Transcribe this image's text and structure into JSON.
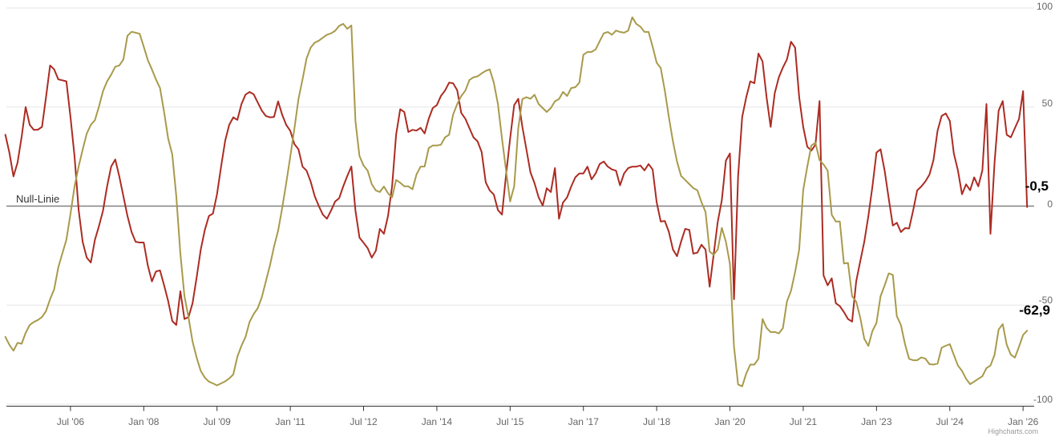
{
  "chart_data": {
    "type": "line",
    "title": "",
    "legend_position": "none",
    "grid": true,
    "x_axis": {
      "start": "2005-03",
      "end": "2026-02",
      "interval": "monthly",
      "tick_labels": [
        "Jul '06",
        "Jan '08",
        "Jul '09",
        "Jan '11",
        "Jul '12",
        "Jan '14",
        "Jul '15",
        "Jan '17",
        "Jul '18",
        "Jan '20",
        "Jul '21",
        "Jan '23",
        "Jul '24",
        "Jan '26"
      ],
      "tick_indices": [
        16,
        34,
        52,
        70,
        88,
        106,
        124,
        142,
        160,
        178,
        196,
        214,
        232,
        250
      ]
    },
    "y_axis": {
      "ticks": [
        100,
        50,
        0,
        -50,
        -100
      ],
      "tick_labels": [
        "100",
        "50",
        "0",
        "-50",
        "-100"
      ],
      "ylim": [
        -100,
        100
      ],
      "opposite": true,
      "zero_line_label": "Null-Linie"
    },
    "series": [
      {
        "id": "red",
        "color": "#AC2B22",
        "last_value_label": "-0,5",
        "values": [
          36,
          27,
          15,
          22,
          35,
          50,
          41,
          38.5,
          38.6,
          40,
          55,
          71,
          69,
          64,
          63.5,
          63,
          45,
          25,
          -2,
          -18,
          -26,
          -28.5,
          -17,
          -10,
          -2.3,
          10,
          20,
          23.5,
          15,
          5,
          -5,
          -13,
          -18,
          -18.4,
          -18.4,
          -30,
          -38,
          -33,
          -32.5,
          -40,
          -48,
          -58,
          -60,
          -43,
          -57,
          -56,
          -49,
          -36,
          -22,
          -12,
          -5,
          -3.8,
          6,
          20,
          33,
          41,
          44.8,
          43.5,
          51.5,
          56.3,
          57.6,
          56.5,
          52.3,
          48.2,
          45.5,
          44.8,
          45,
          52.9,
          46.1,
          41,
          38,
          31.3,
          28.7,
          19.9,
          17.9,
          12.4,
          5,
          0,
          -4.3,
          -6.4,
          -2.3,
          2.3,
          4,
          9.9,
          15.2,
          20,
          -2.3,
          -15.9,
          -18.5,
          -21.2,
          -26,
          -22.6,
          -11.5,
          -14,
          -5,
          10,
          36,
          48.9,
          47.5,
          37.4,
          38.5,
          38.1,
          39.5,
          36.7,
          44.1,
          49.5,
          51,
          55.6,
          58.3,
          62.3,
          62,
          58.5,
          47,
          44.1,
          39.4,
          34.7,
          32.7,
          27.3,
          12,
          7.9,
          5.8,
          -2,
          -4.3,
          16,
          34,
          51,
          54.2,
          40,
          28.7,
          17,
          11.5,
          4.4,
          0.3,
          9,
          7.1,
          19.2,
          -6.4,
          1.8,
          4.4,
          9.9,
          14.5,
          16.5,
          16.5,
          19.9,
          13.5,
          16.5,
          21.2,
          22.5,
          19.9,
          18.5,
          17.9,
          10.5,
          16.5,
          19.2,
          19.9,
          19.9,
          20.5,
          18,
          21.2,
          18.5,
          2,
          -7.8,
          -7.5,
          -13.1,
          -21.9,
          -25.3,
          -17.9,
          -11.5,
          -12,
          -24,
          -23.5,
          -19.5,
          -22,
          -40.7,
          -24.5,
          -8,
          3,
          23,
          26.6,
          -47,
          15,
          45,
          55,
          63,
          62,
          77,
          73,
          55,
          40,
          57,
          65,
          70,
          74,
          83,
          80,
          55,
          40,
          30,
          28,
          31,
          53,
          -35,
          -40,
          -36.5,
          -49,
          -50.5,
          -53.5,
          -57,
          -58.3,
          -38,
          -28,
          -18,
          -5,
          10,
          27,
          28.7,
          17.9,
          3.8,
          -9.8,
          -8.4,
          -13.1,
          -11.1,
          -11.3,
          -2.3,
          7.9,
          9.9,
          12.4,
          15.9,
          23.2,
          38,
          45.5,
          46.8,
          43,
          26.6,
          18,
          6,
          11,
          8,
          14.5,
          10,
          18,
          51.5,
          -14,
          22,
          48.2,
          53,
          36,
          34.7,
          39.4,
          44,
          58,
          -0.5
        ]
      },
      {
        "id": "olive",
        "color": "#A89A4B",
        "last_value_label": "-62,9",
        "values": [
          -66,
          -70,
          -73,
          -69,
          -69.5,
          -64,
          -60,
          -58.5,
          -57.5,
          -56,
          -53,
          -47,
          -42,
          -31,
          -24,
          -17,
          -4,
          10,
          20,
          28.5,
          36.6,
          41,
          43.4,
          50.3,
          58,
          63,
          66.4,
          70.4,
          71,
          74,
          86,
          88,
          87.5,
          87,
          80.5,
          73.7,
          69,
          64,
          59.6,
          47.5,
          34,
          26,
          5,
          -24,
          -45.5,
          -56.3,
          -68.4,
          -76.5,
          -83.2,
          -86.6,
          -88.6,
          -89.5,
          -90.5,
          -89.5,
          -88.5,
          -87,
          -85,
          -76,
          -70.5,
          -66,
          -58.5,
          -54.5,
          -51.5,
          -46,
          -38,
          -30,
          -20.5,
          -12.5,
          -1,
          11.5,
          25,
          39,
          54,
          64,
          74.5,
          80,
          82.5,
          83.5,
          85,
          86.5,
          87.2,
          88.5,
          91,
          92,
          89.5,
          91.2,
          42.8,
          25.3,
          20.5,
          17.9,
          11.1,
          7.9,
          7.1,
          9.9,
          6.5,
          4.4,
          13.2,
          11.8,
          10,
          10,
          8.5,
          15.9,
          19.9,
          20,
          29.3,
          30.6,
          30.6,
          31,
          34.7,
          36,
          46.2,
          51.5,
          55.6,
          58.3,
          63.6,
          65,
          65.5,
          67,
          68.3,
          69,
          62.3,
          51.5,
          34,
          17.9,
          2.3,
          10,
          39.4,
          54,
          55,
          54.2,
          56.2,
          51.5,
          49.5,
          47.5,
          49.5,
          52.9,
          54,
          57.6,
          55.6,
          59.6,
          60,
          62.3,
          76.4,
          77.8,
          77.8,
          79.1,
          83.2,
          87.2,
          87.9,
          86.5,
          88.6,
          87.9,
          87.5,
          88.6,
          95.3,
          92,
          90.6,
          87.9,
          87.9,
          80.5,
          72.4,
          69.7,
          58.3,
          44.8,
          32.7,
          22.5,
          15.2,
          13.2,
          11.1,
          9.1,
          8,
          2,
          -3,
          -23,
          -24.6,
          -22,
          -11,
          -18,
          -29.2,
          -71,
          -90,
          -91,
          -84.5,
          -80,
          -80,
          -77.1,
          -57,
          -61.5,
          -63.6,
          -63.5,
          -64.3,
          -61.6,
          -48.2,
          -42.8,
          -33.3,
          -22,
          8,
          19.9,
          30.6,
          32,
          23.2,
          21,
          17.9,
          -4.4,
          -7.8,
          -7.8,
          -29,
          -28.7,
          -45.5,
          -48.2,
          -56.2,
          -67,
          -70.6,
          -63,
          -59,
          -45.5,
          -40,
          -34,
          -34.7,
          -55.6,
          -60,
          -69.7,
          -77.1,
          -77.8,
          -77.8,
          -76.4,
          -77,
          -79.8,
          -80,
          -79.5,
          -71.5,
          -70.5,
          -69.7,
          -75.1,
          -80.5,
          -83.2,
          -87.2,
          -89.9,
          -88.6,
          -87.2,
          -85.9,
          -81.8,
          -80.5,
          -75.1,
          -62.3,
          -59.6,
          -70,
          -75,
          -76.5,
          -71,
          -65,
          -62.9
        ]
      }
    ]
  },
  "labels": {
    "null_line": "Null-Linie",
    "red_value": "-0,5",
    "olive_value": "-62,9",
    "credit": "Highcharts.com"
  },
  "colors": {
    "red_series": "#AC2B22",
    "olive_series": "#A89A4B",
    "gridline": "#E6E6E6",
    "zero_line": "#808080",
    "axis_line": "#333333",
    "axis_label": "#666666",
    "data_label": "#000000",
    "credit": "#999999"
  }
}
